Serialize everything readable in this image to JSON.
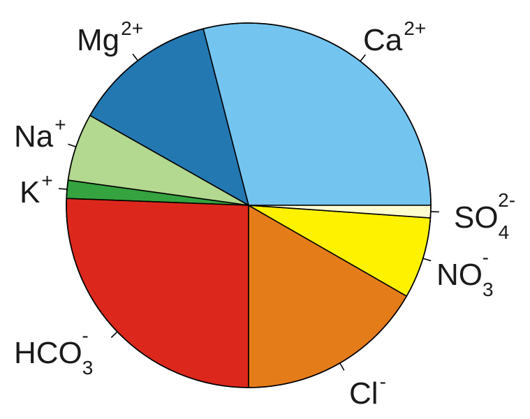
{
  "chart_data": {
    "type": "pie",
    "title": "",
    "start_angle_deg": 0,
    "direction": "counterclockwise",
    "slices": [
      {
        "name": "Ca",
        "charge": "2+",
        "sub": "",
        "value": 29.0,
        "color": "#74C4F0"
      },
      {
        "name": "Mg",
        "charge": "2+",
        "sub": "",
        "value": 12.8,
        "color": "#2478B2"
      },
      {
        "name": "Na",
        "charge": "+",
        "sub": "",
        "value": 6.0,
        "color": "#B3D890"
      },
      {
        "name": "K",
        "charge": "+",
        "sub": "",
        "value": 1.6,
        "color": "#35A33F"
      },
      {
        "name": "HCO",
        "charge": "-",
        "sub": "3",
        "value": 25.6,
        "color": "#DC281C"
      },
      {
        "name": "Cl",
        "charge": "-",
        "sub": "",
        "value": 16.7,
        "color": "#E57C1A"
      },
      {
        "name": "NO",
        "charge": "-",
        "sub": "3",
        "value": 7.2,
        "color": "#FFF200"
      },
      {
        "name": "SO",
        "charge": "2-",
        "sub": "4",
        "value": 1.1,
        "color": "#FEFDD0"
      }
    ]
  }
}
